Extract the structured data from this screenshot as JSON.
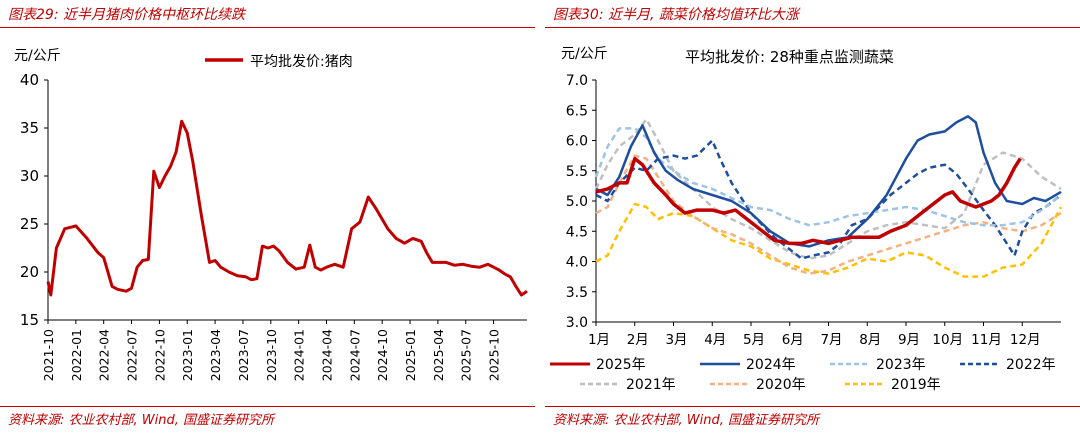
{
  "left": {
    "title": "图表29: 近半月猪肉价格中枢环比续跌",
    "source": "资料来源: 农业农村部, Wind, 国盛证券研究所",
    "unit": "元/公斤",
    "chart_data": {
      "type": "line",
      "title": "",
      "ylabel": "元/公斤",
      "ylim": [
        15,
        40
      ],
      "yticks": [
        15,
        20,
        25,
        30,
        35,
        40
      ],
      "xlabels": [
        "2021-10",
        "2022-01",
        "2022-04",
        "2022-07",
        "2022-10",
        "2023-01",
        "2023-04",
        "2023-07",
        "2023-10",
        "2024-01",
        "2024-04",
        "2024-07",
        "2024-10",
        "2025-01",
        "2025-04",
        "2025-07",
        "2025-10"
      ],
      "legend": "top-center",
      "series": [
        {
          "name": "平均批发价:猪肉",
          "color": "#c00000",
          "x": [
            0,
            0.1,
            0.3,
            0.6,
            1,
            1.4,
            1.8,
            2,
            2.3,
            2.5,
            2.8,
            3,
            3.2,
            3.4,
            3.6,
            3.8,
            4,
            4.2,
            4.4,
            4.6,
            4.8,
            5,
            5.2,
            5.5,
            5.8,
            6,
            6.2,
            6.5,
            6.8,
            7.1,
            7.3,
            7.5,
            7.7,
            7.9,
            8.1,
            8.3,
            8.6,
            8.9,
            9.2,
            9.4,
            9.6,
            9.8,
            10,
            10.3,
            10.6,
            10.9,
            11.2,
            11.5,
            11.8,
            12,
            12.2,
            12.5,
            12.8,
            13.1,
            13.4,
            13.6,
            13.8,
            14,
            14.3,
            14.6,
            14.9,
            15.2,
            15.5,
            15.8,
            16,
            16.2,
            16.4,
            16.6,
            16.8,
            17,
            17.2
          ],
          "values": [
            19,
            17.6,
            22.5,
            24.5,
            24.8,
            23.5,
            22,
            21.5,
            18.5,
            18.2,
            18,
            18.3,
            20.5,
            21.2,
            21.3,
            30.5,
            28.8,
            30,
            31,
            32.5,
            35.7,
            34.5,
            31.5,
            26,
            21,
            21.2,
            20.5,
            20,
            19.6,
            19.5,
            19.2,
            19.3,
            22.7,
            22.5,
            22.7,
            22.2,
            21,
            20.3,
            20.5,
            22.8,
            20.5,
            20.2,
            20.5,
            20.8,
            20.5,
            24.5,
            25.2,
            27.8,
            26.5,
            25.5,
            24.5,
            23.5,
            23,
            23.5,
            23.2,
            22,
            21,
            21,
            21,
            20.7,
            20.8,
            20.6,
            20.5,
            20.8,
            20.5,
            20.2,
            19.8,
            19.5,
            18.5,
            17.6,
            18
          ]
        }
      ]
    }
  },
  "right": {
    "title": "图表30: 近半月, 蔬菜价格均值环比大涨",
    "source": "资料来源: 农业农村部, Wind, 国盛证券研究所",
    "unit": "元/公斤",
    "chart_data": {
      "type": "line",
      "title": "平均批发价: 28种重点监测蔬菜",
      "ylabel": "元/公斤",
      "ylim": [
        3.0,
        7.0
      ],
      "yticks": [
        "3.0",
        "3.5",
        "4.0",
        "4.5",
        "5.0",
        "5.5",
        "6.0",
        "6.5",
        "7.0"
      ],
      "categories": [
        "1月",
        "2月",
        "3月",
        "4月",
        "5月",
        "6月",
        "7月",
        "8月",
        "9月",
        "10月",
        "11月",
        "12月"
      ],
      "legend": "bottom",
      "series": [
        {
          "name": "2025年",
          "color": "#c00000",
          "dash": "solid",
          "width": 3.5,
          "x": [
            0,
            0.3,
            0.6,
            0.8,
            1,
            1.2,
            1.5,
            1.8,
            2,
            2.3,
            2.6,
            3,
            3.3,
            3.6,
            4,
            4.3,
            4.6,
            5,
            5.3,
            5.6,
            6,
            6.3,
            6.6,
            7,
            7.3,
            7.6,
            8,
            8.3,
            8.6,
            9,
            9.2,
            9.4,
            9.6,
            9.8,
            10,
            10.2,
            10.4,
            10.6,
            10.8,
            10.95
          ],
          "values": [
            5.15,
            5.2,
            5.3,
            5.3,
            5.7,
            5.6,
            5.3,
            5.1,
            4.95,
            4.8,
            4.85,
            4.85,
            4.8,
            4.85,
            4.65,
            4.5,
            4.35,
            4.3,
            4.3,
            4.35,
            4.3,
            4.35,
            4.4,
            4.4,
            4.4,
            4.5,
            4.6,
            4.75,
            4.9,
            5.1,
            5.15,
            5.0,
            4.95,
            4.9,
            4.95,
            5.0,
            5.1,
            5.3,
            5.55,
            5.7
          ]
        },
        {
          "name": "2024年",
          "color": "#1f4e9e",
          "dash": "solid",
          "width": 2.5,
          "x": [
            0,
            0.3,
            0.6,
            0.9,
            1.2,
            1.5,
            1.8,
            2.1,
            2.5,
            3,
            3.5,
            4,
            4.5,
            5,
            5.5,
            6,
            6.5,
            7,
            7.5,
            8,
            8.3,
            8.6,
            9,
            9.3,
            9.6,
            9.8,
            10,
            10.3,
            10.6,
            11,
            11.3,
            11.6,
            12
          ],
          "values": [
            5.2,
            5.1,
            5.4,
            5.9,
            6.25,
            5.8,
            5.5,
            5.35,
            5.2,
            5.1,
            5.0,
            4.8,
            4.5,
            4.3,
            4.25,
            4.35,
            4.4,
            4.7,
            5.1,
            5.7,
            6.0,
            6.1,
            6.15,
            6.3,
            6.4,
            6.3,
            5.8,
            5.3,
            5.0,
            4.95,
            5.05,
            5.0,
            5.15
          ]
        },
        {
          "name": "2023年",
          "color": "#9dc3e6",
          "dash": "6,4",
          "width": 2.5,
          "x": [
            0,
            0.3,
            0.6,
            1,
            1.3,
            1.6,
            2,
            2.5,
            3,
            3.5,
            4,
            4.5,
            5,
            5.5,
            6,
            6.5,
            7,
            7.5,
            8,
            8.5,
            9,
            9.5,
            10,
            10.5,
            11,
            11.5,
            12
          ],
          "values": [
            5.4,
            5.9,
            6.2,
            6.2,
            6.05,
            5.7,
            5.5,
            5.3,
            5.2,
            5.05,
            4.9,
            4.85,
            4.7,
            4.6,
            4.65,
            4.75,
            4.8,
            4.85,
            4.9,
            4.85,
            4.75,
            4.65,
            4.6,
            4.6,
            4.65,
            4.85,
            5.1
          ]
        },
        {
          "name": "2022年",
          "color": "#1f4e9e",
          "dash": "6,4",
          "width": 2.5,
          "x": [
            0,
            0.3,
            0.6,
            1,
            1.3,
            1.6,
            2,
            2.3,
            2.6,
            3,
            3.2,
            3.5,
            3.8,
            4,
            4.3,
            4.6,
            5,
            5.3,
            5.6,
            6,
            6.3,
            6.6,
            7,
            7.3,
            7.6,
            8,
            8.3,
            8.6,
            9,
            9.3,
            9.6,
            10,
            10.3,
            10.6,
            10.8,
            11,
            11.3,
            11.6,
            12
          ],
          "values": [
            5.1,
            5.0,
            5.3,
            5.55,
            5.5,
            5.7,
            5.75,
            5.7,
            5.75,
            6.0,
            5.7,
            5.3,
            5.0,
            4.8,
            4.6,
            4.4,
            4.2,
            4.05,
            4.1,
            4.15,
            4.3,
            4.6,
            4.7,
            4.9,
            5.1,
            5.3,
            5.45,
            5.55,
            5.6,
            5.45,
            5.2,
            4.85,
            4.6,
            4.3,
            4.1,
            4.5,
            4.8,
            4.9,
            5.1
          ]
        },
        {
          "name": "2021年",
          "color": "#bfbfbf",
          "dash": "6,4",
          "width": 2.5,
          "x": [
            0,
            0.3,
            0.6,
            1,
            1.3,
            1.6,
            2,
            2.5,
            3,
            3.5,
            4,
            4.5,
            5,
            5.5,
            6,
            6.5,
            7,
            7.5,
            8,
            8.5,
            9,
            9.5,
            10,
            10.5,
            11,
            11.5,
            12
          ],
          "values": [
            5.2,
            5.6,
            5.9,
            6.1,
            6.35,
            6.0,
            5.5,
            5.2,
            4.9,
            4.7,
            4.55,
            4.35,
            4.15,
            4.05,
            4.1,
            4.3,
            4.5,
            4.6,
            4.65,
            4.6,
            4.55,
            4.8,
            5.6,
            5.8,
            5.7,
            5.4,
            5.2
          ]
        },
        {
          "name": "2020年",
          "color": "#f4b183",
          "dash": "6,4",
          "width": 2.5,
          "x": [
            0,
            0.3,
            0.6,
            1,
            1.3,
            1.6,
            2,
            2.5,
            3,
            3.5,
            4,
            4.5,
            5,
            5.5,
            6,
            6.5,
            7,
            7.5,
            8,
            8.5,
            9,
            9.5,
            10,
            10.5,
            11,
            11.5,
            12
          ],
          "values": [
            4.8,
            4.9,
            5.3,
            5.75,
            5.7,
            5.4,
            5.0,
            4.75,
            4.55,
            4.45,
            4.3,
            4.1,
            3.9,
            3.8,
            3.85,
            4.0,
            4.1,
            4.2,
            4.3,
            4.4,
            4.5,
            4.6,
            4.65,
            4.55,
            4.5,
            4.6,
            4.8
          ]
        },
        {
          "name": "2019年",
          "color": "#ffc000",
          "dash": "6,4",
          "width": 2.5,
          "x": [
            0,
            0.3,
            0.6,
            1,
            1.3,
            1.6,
            2,
            2.5,
            3,
            3.5,
            4,
            4.5,
            5,
            5.5,
            6,
            6.5,
            7,
            7.5,
            8,
            8.5,
            9,
            9.5,
            10,
            10.5,
            11,
            11.5,
            12
          ],
          "values": [
            4.0,
            4.1,
            4.5,
            4.95,
            4.9,
            4.7,
            4.8,
            4.75,
            4.55,
            4.35,
            4.25,
            4.05,
            3.95,
            3.85,
            3.8,
            3.9,
            4.05,
            4.0,
            4.15,
            4.1,
            3.9,
            3.75,
            3.75,
            3.9,
            3.95,
            4.3,
            4.9
          ]
        }
      ]
    }
  }
}
